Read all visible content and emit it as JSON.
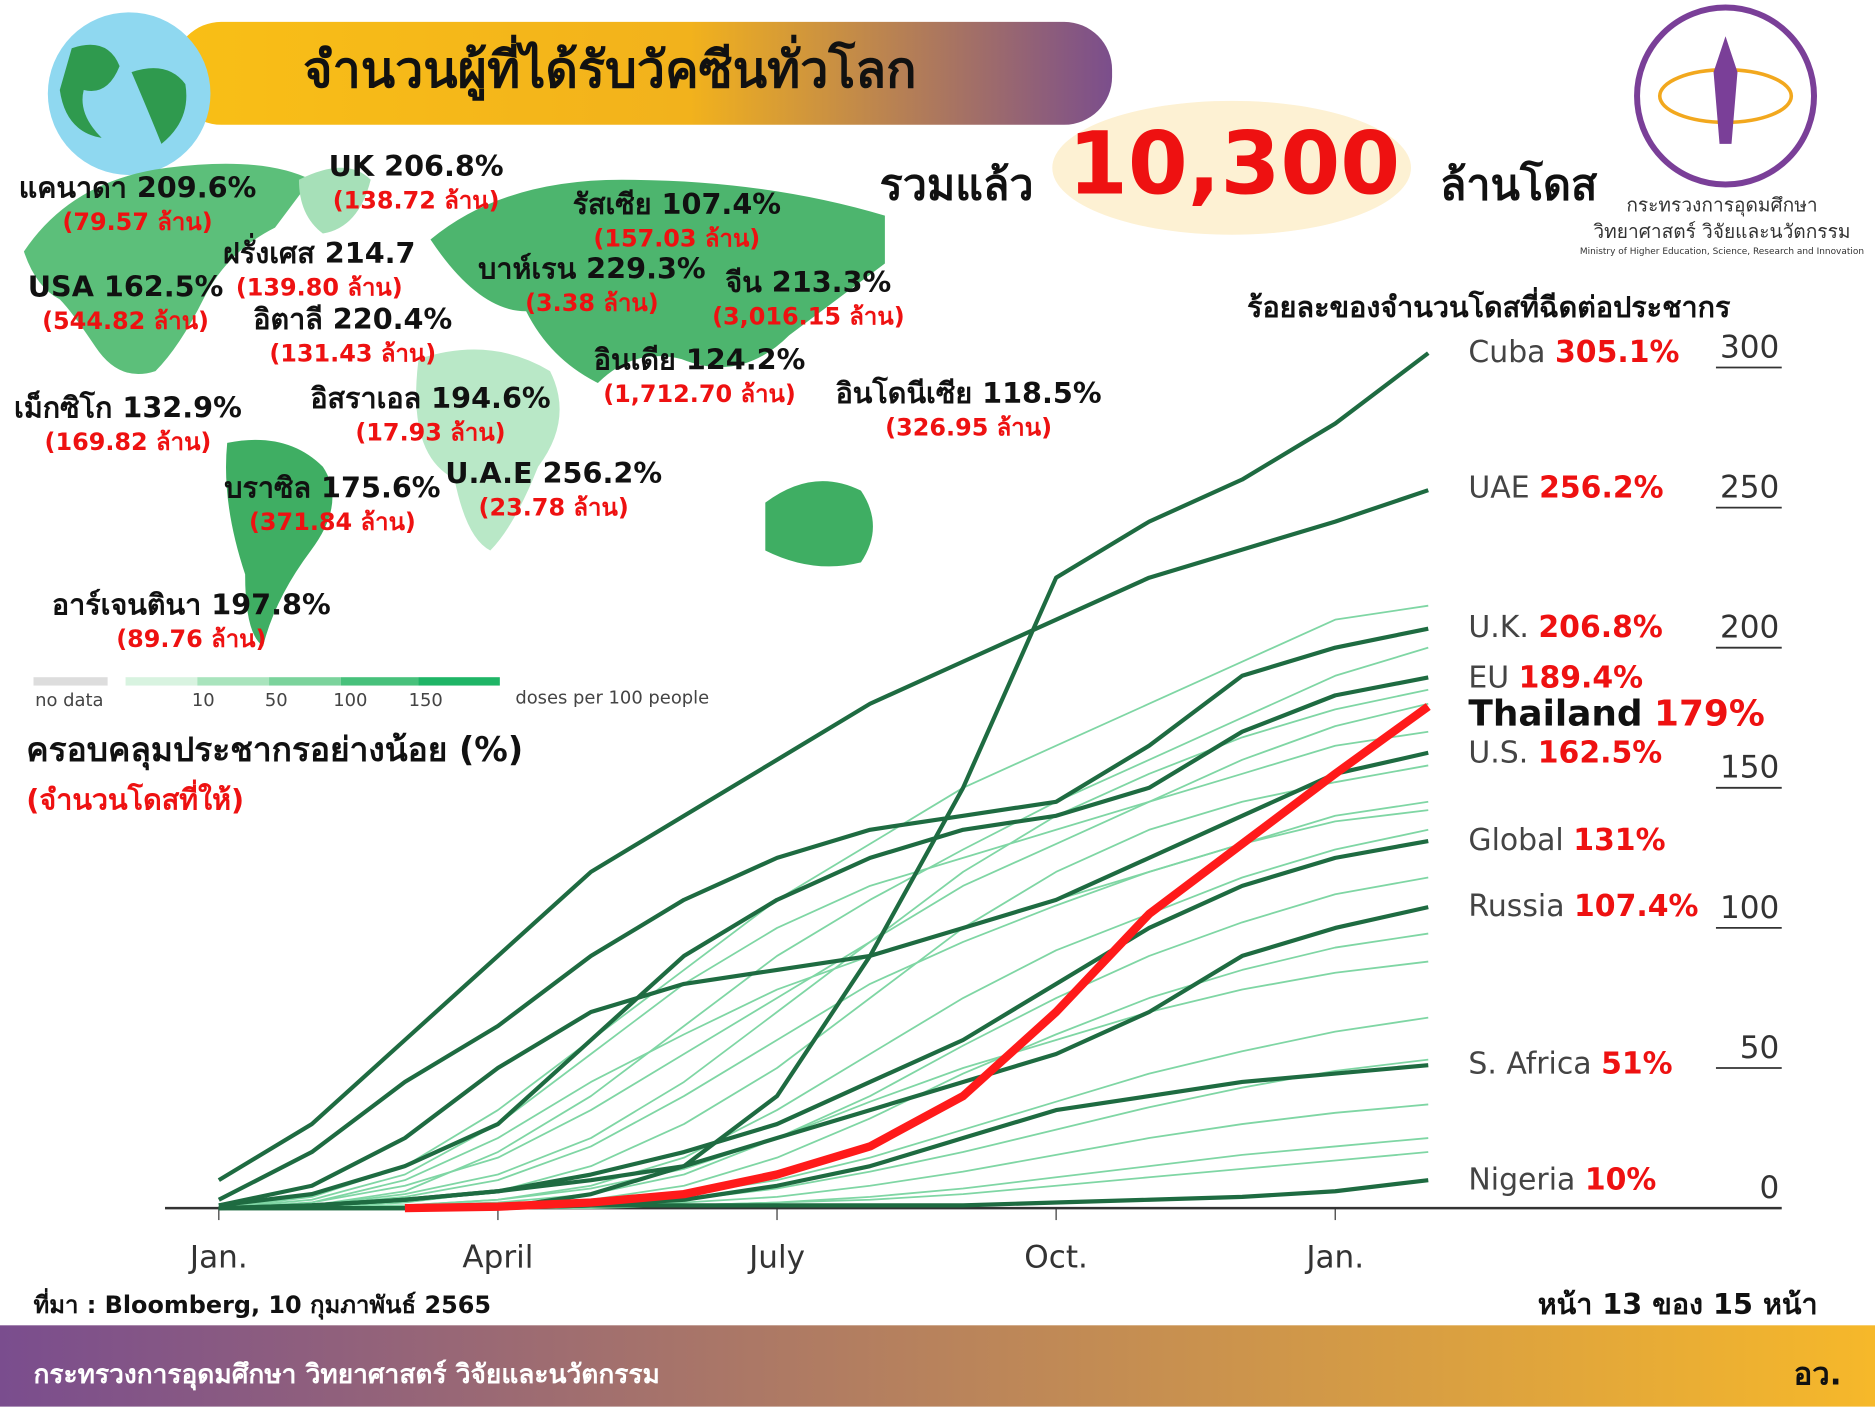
{
  "header": {
    "title": "จำนวนผู้ที่ได้รับวัคซีนทั่วโลก",
    "total_prefix": "รวมแล้ว",
    "total": "10,300",
    "total_suffix": "ล้านโดส"
  },
  "logo": {
    "line1": "กระทรวงการอุดมศึกษา",
    "line2": "วิทยาศาสตร์ วิจัยและนวัตกรรม",
    "line3": "Ministry of Higher Education, Science, Research and Innovation"
  },
  "map": {
    "annotations": [
      {
        "label": "แคนาดา 209.6%",
        "doses": "(79.57 ล้าน)"
      },
      {
        "label": "UK 206.8%",
        "doses": "(138.72 ล้าน)"
      },
      {
        "label": "รัสเซีย 107.4%",
        "doses": "(157.03 ล้าน)"
      },
      {
        "label": "ฝรั่งเศส 214.7",
        "doses": "(139.80 ล้าน)"
      },
      {
        "label": "USA 162.5%",
        "doses": "(544.82 ล้าน)"
      },
      {
        "label": "บาห์เรน 229.3%",
        "doses": "(3.38 ล้าน)"
      },
      {
        "label": "จีน 213.3%",
        "doses": "(3,016.15 ล้าน)"
      },
      {
        "label": "อิตาลี 220.4%",
        "doses": "(131.43 ล้าน)"
      },
      {
        "label": "อินเดีย 124.2%",
        "doses": "(1,712.70 ล้าน)"
      },
      {
        "label": "เม็กซิโก 132.9%",
        "doses": "(169.82 ล้าน)"
      },
      {
        "label": "อิสราเอล 194.6%",
        "doses": "(17.93 ล้าน)"
      },
      {
        "label": "อินโดนีเซีย 118.5%",
        "doses": "(326.95 ล้าน)"
      },
      {
        "label": "บราซิล 175.6%",
        "doses": "(371.84 ล้าน)"
      },
      {
        "label": "U.A.E 256.2%",
        "doses": "(23.78 ล้าน)"
      },
      {
        "label": "อาร์เจนตินา 197.8%",
        "doses": "(89.76 ล้าน)"
      }
    ],
    "legend": {
      "no_data": "no data",
      "steps": [
        "10",
        "50",
        "100",
        "150"
      ],
      "caption": "doses per 100 people"
    }
  },
  "left_note": {
    "line1": "ครอบคลุมประชากรอย่างน้อย (%)",
    "line2": "(จำนวนโดสที่ให้)"
  },
  "chart_data": {
    "type": "line",
    "title": "ร้อยละของจำนวนโดสที่ฉีดต่อประชากร",
    "categories": [
      "Jan.",
      null,
      null,
      "April",
      null,
      null,
      "July",
      null,
      null,
      "Oct.",
      null,
      null,
      "Jan.",
      null
    ],
    "ylim": [
      0,
      300
    ],
    "yticks": [
      0,
      50,
      100,
      150,
      200,
      250,
      300
    ],
    "series": [
      {
        "name": "Cuba",
        "color": "#1e6b41",
        "value_label": "305.1%",
        "values": [
          0,
          0,
          0,
          0,
          5,
          15,
          40,
          90,
          150,
          225,
          245,
          260,
          280,
          305.1
        ]
      },
      {
        "name": "UAE",
        "color": "#1e6b41",
        "value_label": "256.2%",
        "values": [
          10,
          30,
          60,
          90,
          120,
          140,
          160,
          180,
          195,
          210,
          225,
          235,
          245,
          256.2
        ]
      },
      {
        "name": "U.K.",
        "color": "#1e6b41",
        "value_label": "206.8%",
        "values": [
          3,
          20,
          45,
          65,
          90,
          110,
          125,
          135,
          140,
          145,
          165,
          190,
          200,
          206.8
        ]
      },
      {
        "name": "EU",
        "color": "#1e6b41",
        "value_label": "189.4%",
        "values": [
          1,
          5,
          15,
          30,
          60,
          90,
          110,
          125,
          135,
          140,
          150,
          170,
          183,
          189.4
        ]
      },
      {
        "name": "U.S.",
        "color": "#1e6b41",
        "value_label": "162.5%",
        "values": [
          1,
          8,
          25,
          50,
          70,
          80,
          85,
          90,
          100,
          110,
          125,
          140,
          155,
          162.5
        ]
      },
      {
        "name": "Global",
        "color": "#1e6b41",
        "value_label": "131%",
        "values": [
          0,
          1,
          3,
          6,
          12,
          20,
          30,
          45,
          60,
          80,
          100,
          115,
          125,
          131
        ]
      },
      {
        "name": "Russia",
        "color": "#1e6b41",
        "value_label": "107.4%",
        "values": [
          0,
          1,
          3,
          6,
          10,
          15,
          25,
          35,
          45,
          55,
          70,
          90,
          100,
          107.4
        ]
      },
      {
        "name": "S. Africa",
        "color": "#1e6b41",
        "value_label": "51%",
        "values": [
          0,
          0,
          0,
          0,
          1,
          3,
          8,
          15,
          25,
          35,
          40,
          45,
          48,
          51
        ]
      },
      {
        "name": "Nigeria",
        "color": "#1e6b41",
        "value_label": "10%",
        "values": [
          0,
          0,
          0,
          0,
          1,
          1,
          1,
          1,
          1,
          2,
          3,
          4,
          6,
          10
        ]
      },
      {
        "name": "Thailand",
        "color": "#ff1a1a",
        "value_label": "179%",
        "values": [
          null,
          null,
          0,
          0.5,
          2,
          5,
          12,
          22,
          40,
          70,
          105,
          130,
          155,
          179
        ]
      }
    ],
    "others_color": "#7fd6a4",
    "others": [
      [
        0,
        2,
        8,
        18,
        35,
        55,
        75,
        95,
        115,
        130,
        145,
        160,
        172,
        180
      ],
      [
        0,
        1,
        5,
        12,
        25,
        45,
        70,
        95,
        120,
        140,
        155,
        168,
        178,
        185
      ],
      [
        0,
        3,
        12,
        30,
        55,
        80,
        100,
        115,
        125,
        135,
        145,
        155,
        165,
        170
      ],
      [
        0,
        0,
        2,
        6,
        15,
        30,
        50,
        75,
        100,
        120,
        135,
        145,
        152,
        158
      ],
      [
        0,
        1,
        4,
        10,
        22,
        40,
        60,
        80,
        95,
        108,
        120,
        130,
        140,
        145
      ],
      [
        0,
        0,
        1,
        3,
        8,
        18,
        35,
        55,
        75,
        92,
        105,
        118,
        128,
        135
      ],
      [
        0,
        2,
        10,
        25,
        45,
        62,
        78,
        90,
        100,
        110,
        120,
        130,
        138,
        142
      ],
      [
        0,
        0,
        1,
        2,
        5,
        12,
        25,
        40,
        58,
        75,
        90,
        102,
        112,
        118
      ],
      [
        0,
        0,
        0,
        1,
        3,
        8,
        18,
        32,
        48,
        62,
        75,
        85,
        93,
        98
      ],
      [
        0,
        0,
        1,
        3,
        7,
        14,
        25,
        38,
        50,
        60,
        70,
        78,
        84,
        88
      ],
      [
        0,
        0,
        0,
        1,
        2,
        5,
        10,
        18,
        28,
        38,
        48,
        56,
        63,
        68
      ],
      [
        0,
        0,
        0,
        0,
        1,
        3,
        7,
        13,
        20,
        28,
        36,
        43,
        49,
        53
      ],
      [
        0,
        0,
        0,
        0,
        1,
        2,
        4,
        8,
        13,
        19,
        25,
        30,
        34,
        37
      ],
      [
        0,
        0,
        0,
        0,
        0,
        1,
        2,
        4,
        7,
        11,
        15,
        19,
        22,
        25
      ],
      [
        0,
        1,
        6,
        20,
        40,
        65,
        90,
        110,
        128,
        145,
        160,
        175,
        190,
        200
      ],
      [
        0,
        4,
        15,
        35,
        60,
        85,
        110,
        130,
        150,
        165,
        180,
        195,
        210,
        215
      ],
      [
        0,
        0,
        0,
        0,
        1,
        1,
        2,
        3,
        5,
        8,
        11,
        14,
        17,
        20
      ]
    ]
  },
  "source": "ที่มา : Bloomberg, 10 กุมภาพันธ์ 2565",
  "page": "หน้า 13 ของ 15 หน้า",
  "footer": {
    "ministry": "กระทรวงการอุดมศึกษา วิทยาศาสตร์ วิจัยและนวัตกรรม",
    "abbr": "อว."
  }
}
